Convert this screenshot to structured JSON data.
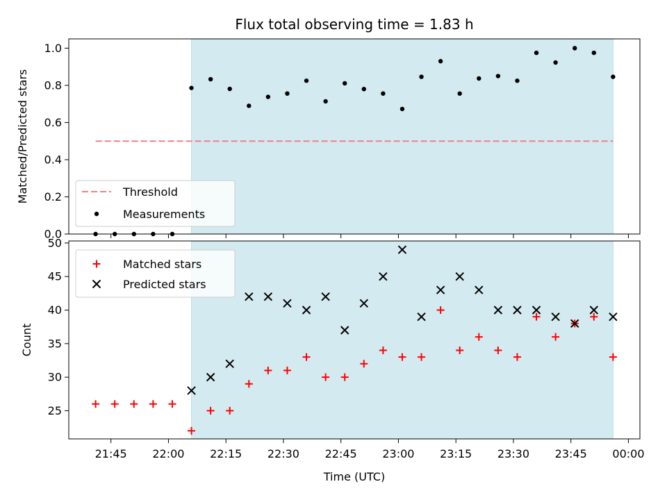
{
  "chart_data": [
    {
      "type": "scatter",
      "title": "Flux total observing time = 1.83 h",
      "xlabel": "",
      "ylabel": "Matched/Predicted stars",
      "xlim": [
        "21:34",
        "00:03"
      ],
      "ylim": [
        0,
        1.05
      ],
      "yticks": [
        0.0,
        0.2,
        0.4,
        0.6,
        0.8,
        1.0
      ],
      "ytick_labels": [
        "0.0",
        "0.2",
        "0.4",
        "0.6",
        "0.8",
        "1.0"
      ],
      "observing_window": [
        "22:06",
        "23:56"
      ],
      "legend": {
        "placement": "lower-left",
        "entries": [
          "Threshold",
          "Measurements"
        ]
      },
      "threshold": {
        "name": "Threshold",
        "value": 0.5,
        "x_range": [
          "21:41",
          "23:56"
        ],
        "color": "#f08080",
        "style": "dashed"
      },
      "series": [
        {
          "name": "Measurements",
          "marker": "dot",
          "color": "#000000",
          "x": [
            "21:41",
            "21:46",
            "21:51",
            "21:56",
            "22:01",
            "22:06",
            "22:11",
            "22:16",
            "22:21",
            "22:26",
            "22:31",
            "22:36",
            "22:41",
            "22:46",
            "22:51",
            "22:56",
            "23:01",
            "23:06",
            "23:11",
            "23:16",
            "23:21",
            "23:26",
            "23:31",
            "23:36",
            "23:41",
            "23:46",
            "23:51",
            "23:56"
          ],
          "y": [
            0.0,
            0.0,
            0.0,
            0.0,
            0.0,
            0.786,
            0.833,
            0.781,
            0.69,
            0.738,
            0.756,
            0.825,
            0.714,
            0.811,
            0.78,
            0.756,
            0.673,
            0.846,
            0.93,
            0.756,
            0.837,
            0.85,
            0.825,
            0.975,
            0.923,
            1.0,
            0.975,
            0.846
          ]
        }
      ]
    },
    {
      "type": "scatter",
      "title": "",
      "xlabel": "Time (UTC)",
      "ylabel": "Count",
      "xlim": [
        "21:34",
        "00:03"
      ],
      "ylim": [
        20.8,
        50.3
      ],
      "yticks": [
        25,
        30,
        35,
        40,
        45,
        50
      ],
      "ytick_labels": [
        "25",
        "30",
        "35",
        "40",
        "45",
        "50"
      ],
      "xticks": [
        "21:45",
        "22:00",
        "22:15",
        "22:30",
        "22:45",
        "23:00",
        "23:15",
        "23:30",
        "23:45",
        "00:00"
      ],
      "observing_window": [
        "22:06",
        "23:56"
      ],
      "legend": {
        "placement": "upper-left",
        "entries": [
          "Matched stars",
          "Predicted stars"
        ]
      },
      "series": [
        {
          "name": "Matched stars",
          "marker": "plus",
          "color": "#ff0000",
          "x": [
            "21:41",
            "21:46",
            "21:51",
            "21:56",
            "22:01",
            "22:06",
            "22:11",
            "22:16",
            "22:21",
            "22:26",
            "22:31",
            "22:36",
            "22:41",
            "22:46",
            "22:51",
            "22:56",
            "23:01",
            "23:06",
            "23:11",
            "23:16",
            "23:21",
            "23:26",
            "23:31",
            "23:36",
            "23:41",
            "23:46",
            "23:51",
            "23:56"
          ],
          "y": [
            26,
            26,
            26,
            26,
            26,
            22,
            25,
            25,
            29,
            31,
            31,
            33,
            30,
            30,
            32,
            34,
            33,
            33,
            40,
            34,
            36,
            34,
            33,
            39,
            36,
            38,
            39,
            33
          ]
        },
        {
          "name": "Predicted stars",
          "marker": "x",
          "color": "#000000",
          "x": [
            "22:06",
            "22:11",
            "22:16",
            "22:21",
            "22:26",
            "22:31",
            "22:36",
            "22:41",
            "22:46",
            "22:51",
            "22:56",
            "23:01",
            "23:06",
            "23:11",
            "23:16",
            "23:21",
            "23:26",
            "23:31",
            "23:36",
            "23:41",
            "23:46",
            "23:51",
            "23:56"
          ],
          "y": [
            28,
            30,
            32,
            42,
            42,
            41,
            40,
            42,
            37,
            41,
            45,
            49,
            39,
            43,
            45,
            43,
            40,
            40,
            40,
            39,
            38,
            40,
            39
          ]
        }
      ]
    }
  ],
  "colors": {
    "observing_window": "#d3eaf0",
    "threshold": "#f08080",
    "matched": "#ff0000",
    "predicted": "#000000"
  }
}
